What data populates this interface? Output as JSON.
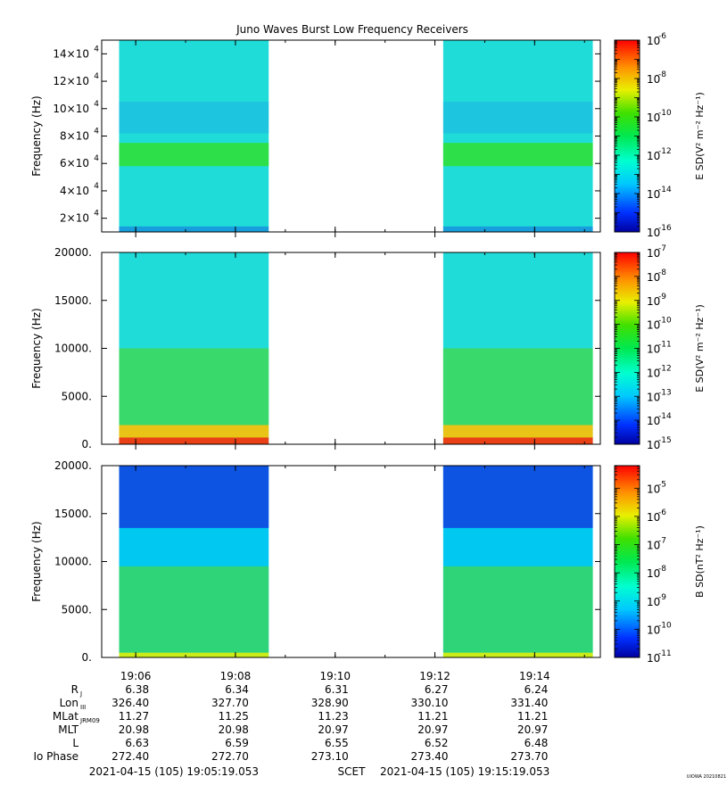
{
  "chart_data": [
    {
      "type": "heatmap",
      "title": "Juno Waves Burst Low Frequency Receivers",
      "ylabel": "Frequency (Hz)",
      "ylim": [
        10000,
        150000
      ],
      "ytick_values": [
        20000,
        40000,
        60000,
        80000,
        100000,
        120000,
        140000
      ],
      "ytick_mantissas": [
        "2",
        "4",
        "6",
        "8",
        "10",
        "12",
        "14"
      ],
      "ytick_exp_base": "×10",
      "ytick_exponent": "4",
      "colorbar_label": "E SD(V² m⁻² Hz⁻¹)",
      "colorbar_range_log10": [
        -16,
        -6
      ],
      "colorbar_ticks": [
        {
          "exp": "-6",
          "log10": -6
        },
        {
          "exp": "-8",
          "log10": -8
        },
        {
          "exp": "-10",
          "log10": -10
        },
        {
          "exp": "-12",
          "log10": -12
        },
        {
          "exp": "-14",
          "log10": -14
        },
        {
          "exp": "-16",
          "log10": -16
        }
      ],
      "data_intervals": [
        [
          "19:05:40",
          "19:08:40"
        ],
        [
          "19:12:10",
          "19:15:10"
        ]
      ]
    },
    {
      "type": "heatmap",
      "ylabel": "Frequency (Hz)",
      "ylim": [
        0,
        20000
      ],
      "yticks": [
        {
          "label": "20000.",
          "value": 20000
        },
        {
          "label": "15000.",
          "value": 15000
        },
        {
          "label": "10000.",
          "value": 10000
        },
        {
          "label": "5000.",
          "value": 5000
        },
        {
          "label": "0.",
          "value": 0
        }
      ],
      "colorbar_label": "E SD(V² m⁻² Hz⁻¹)",
      "colorbar_range_log10": [
        -15,
        -7
      ],
      "colorbar_ticks": [
        {
          "exp": "-7",
          "log10": -7
        },
        {
          "exp": "-8",
          "log10": -8
        },
        {
          "exp": "-9",
          "log10": -9
        },
        {
          "exp": "-10",
          "log10": -10
        },
        {
          "exp": "-11",
          "log10": -11
        },
        {
          "exp": "-12",
          "log10": -12
        },
        {
          "exp": "-13",
          "log10": -13
        },
        {
          "exp": "-14",
          "log10": -14
        },
        {
          "exp": "-15",
          "log10": -15
        }
      ],
      "data_intervals": [
        [
          "19:05:40",
          "19:08:40"
        ],
        [
          "19:12:10",
          "19:15:10"
        ]
      ]
    },
    {
      "type": "heatmap",
      "ylabel": "Frequency (Hz)",
      "ylim": [
        0,
        20000
      ],
      "yticks": [
        {
          "label": "20000.",
          "value": 20000
        },
        {
          "label": "15000.",
          "value": 15000
        },
        {
          "label": "10000.",
          "value": 10000
        },
        {
          "label": "5000.",
          "value": 5000
        },
        {
          "label": "0.",
          "value": 0
        }
      ],
      "colorbar_label": "B SD(nT² Hz⁻¹)",
      "colorbar_range_log10": [
        -11,
        -4.2
      ],
      "colorbar_ticks": [
        {
          "exp": "-5",
          "log10": -5
        },
        {
          "exp": "-6",
          "log10": -6
        },
        {
          "exp": "-7",
          "log10": -7
        },
        {
          "exp": "-8",
          "log10": -8
        },
        {
          "exp": "-9",
          "log10": -9
        },
        {
          "exp": "-10",
          "log10": -10
        },
        {
          "exp": "-11",
          "log10": -11
        }
      ],
      "data_intervals": [
        [
          "19:05:40",
          "19:08:40"
        ],
        [
          "19:12:10",
          "19:15:10"
        ]
      ]
    }
  ],
  "xaxis": {
    "range": [
      "19:05:19.053",
      "19:15:19.053"
    ],
    "ticks": [
      "19:06",
      "19:08",
      "19:10",
      "19:12",
      "19:14"
    ]
  },
  "ephemeris": {
    "rows": [
      {
        "label": "R",
        "sub": "J",
        "values": [
          "6.38",
          "6.34",
          "6.31",
          "6.27",
          "6.24"
        ]
      },
      {
        "label": "Lon",
        "sub": "III",
        "values": [
          "326.40",
          "327.70",
          "328.90",
          "330.10",
          "331.40"
        ]
      },
      {
        "label": "MLat",
        "sub": "JRM09",
        "values": [
          "11.27",
          "11.25",
          "11.23",
          "11.21",
          "11.21"
        ]
      },
      {
        "label": "MLT",
        "sub": "",
        "values": [
          "20.98",
          "20.98",
          "20.97",
          "20.97",
          "20.97"
        ]
      },
      {
        "label": "L",
        "sub": "",
        "values": [
          "6.63",
          "6.59",
          "6.55",
          "6.52",
          "6.48"
        ]
      },
      {
        "label": "Io Phase",
        "sub": "",
        "values": [
          "272.40",
          "272.70",
          "273.10",
          "273.40",
          "273.70"
        ]
      }
    ]
  },
  "footer": {
    "start": "2021-04-15 (105) 19:05:19.053",
    "scet": "SCET",
    "end": "2021-04-15 (105) 19:15:19.053",
    "stamp": "UIOWA 20210821"
  }
}
